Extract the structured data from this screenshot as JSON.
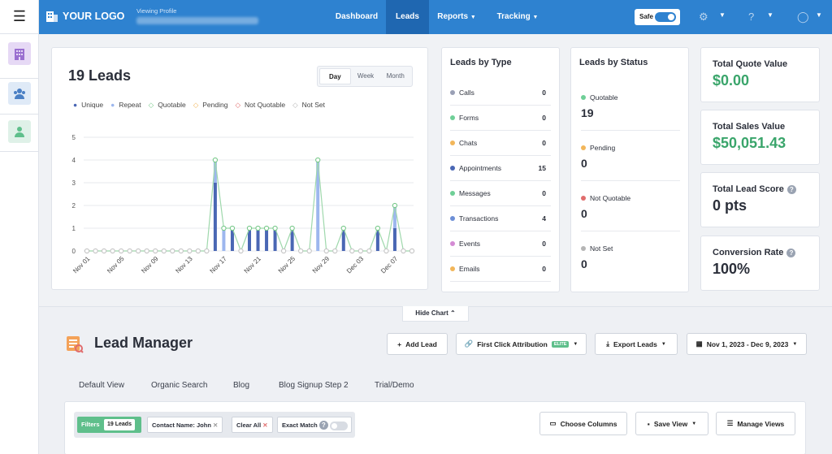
{
  "topbar": {
    "logo_text": "YOUR LOGO",
    "profile_label": "Viewing Profile",
    "profile_name": "Southern Trust Home Services",
    "nav": [
      "Dashboard",
      "Leads",
      "Reports",
      "Tracking"
    ],
    "active_nav": "Leads",
    "safe_label": "Safe",
    "safe_on": true,
    "colors": {
      "bar": "#2e82d0",
      "active": "#1f67b1"
    }
  },
  "sidebar": {
    "icons": [
      "building-icon",
      "group-icon",
      "user-icon"
    ]
  },
  "leads_card": {
    "title": "19 Leads",
    "ranges": [
      "Day",
      "Week",
      "Month"
    ],
    "active_range": "Day",
    "legend": [
      {
        "label": "Unique",
        "color": "#4a67b4"
      },
      {
        "label": "Repeat",
        "color": "#9db7ee"
      },
      {
        "label": "Quotable",
        "color": "#78c98a"
      },
      {
        "label": "Pending",
        "color": "#f2b65a"
      },
      {
        "label": "Not Quotable",
        "color": "#e06c6c"
      },
      {
        "label": "Not Set",
        "color": "#b5b5b5"
      }
    ]
  },
  "chart_data": {
    "type": "bar",
    "ylim": [
      0,
      5
    ],
    "yticks": [
      0,
      1,
      2,
      3,
      4,
      5
    ],
    "xtick_labels": [
      "Nov 01",
      "Nov 05",
      "Nov 09",
      "Nov 13",
      "Nov 17",
      "Nov 21",
      "Nov 25",
      "Nov 29",
      "Dec 03",
      "Dec 07"
    ],
    "categories": [
      "Nov 01",
      "Nov 02",
      "Nov 03",
      "Nov 04",
      "Nov 05",
      "Nov 06",
      "Nov 07",
      "Nov 08",
      "Nov 09",
      "Nov 10",
      "Nov 11",
      "Nov 12",
      "Nov 13",
      "Nov 14",
      "Nov 15",
      "Nov 16",
      "Nov 17",
      "Nov 18",
      "Nov 19",
      "Nov 20",
      "Nov 21",
      "Nov 22",
      "Nov 23",
      "Nov 24",
      "Nov 25",
      "Nov 26",
      "Nov 27",
      "Nov 28",
      "Nov 29",
      "Nov 30",
      "Dec 01",
      "Dec 02",
      "Dec 03",
      "Dec 04",
      "Dec 05",
      "Dec 06",
      "Dec 07",
      "Dec 08",
      "Dec 09"
    ],
    "series": [
      {
        "name": "Unique",
        "values": [
          0,
          0,
          0,
          0,
          0,
          0,
          0,
          0,
          0,
          0,
          0,
          0,
          0,
          0,
          0,
          3,
          0,
          1,
          0,
          1,
          1,
          1,
          1,
          0,
          1,
          0,
          0,
          0,
          0,
          0,
          1,
          0,
          0,
          0,
          1,
          0,
          1,
          0,
          0
        ]
      },
      {
        "name": "Repeat",
        "values": [
          0,
          0,
          0,
          0,
          0,
          0,
          0,
          0,
          0,
          0,
          0,
          0,
          0,
          0,
          0,
          1,
          1,
          0,
          0,
          0,
          0,
          0,
          0,
          0,
          0,
          0,
          0,
          4,
          0,
          0,
          0,
          0,
          0,
          0,
          0,
          0,
          1,
          0,
          0
        ]
      },
      {
        "name": "Quotable",
        "values": [
          0,
          0,
          0,
          0,
          0,
          0,
          0,
          0,
          0,
          0,
          0,
          0,
          0,
          0,
          0,
          4,
          1,
          1,
          0,
          1,
          1,
          1,
          1,
          0,
          1,
          0,
          0,
          4,
          0,
          0,
          1,
          0,
          0,
          0,
          1,
          0,
          2,
          0,
          0
        ]
      }
    ]
  },
  "leads_by_type": {
    "title": "Leads by Type",
    "rows": [
      {
        "label": "Calls",
        "count": "0",
        "color": "#9aa0b5"
      },
      {
        "label": "Forms",
        "count": "0",
        "color": "#6fcf97"
      },
      {
        "label": "Chats",
        "count": "0",
        "color": "#f2b65a"
      },
      {
        "label": "Appointments",
        "count": "15",
        "color": "#4a67b4"
      },
      {
        "label": "Messages",
        "count": "0",
        "color": "#6fcf97"
      },
      {
        "label": "Transactions",
        "count": "4",
        "color": "#6d8fd6"
      },
      {
        "label": "Events",
        "count": "0",
        "color": "#d48bd4"
      },
      {
        "label": "Emails",
        "count": "0",
        "color": "#f2b65a"
      }
    ]
  },
  "leads_by_status": {
    "title": "Leads by Status",
    "rows": [
      {
        "label": "Quotable",
        "count": "19",
        "color": "#6fcf97"
      },
      {
        "label": "Pending",
        "count": "0",
        "color": "#f2b65a"
      },
      {
        "label": "Not Quotable",
        "count": "0",
        "color": "#e06c6c"
      },
      {
        "label": "Not Set",
        "count": "0",
        "color": "#b5b5b5"
      }
    ]
  },
  "metrics": [
    {
      "title": "Total Quote Value",
      "value": "$0.00",
      "color": "#3aa56b",
      "help": false
    },
    {
      "title": "Total Sales Value",
      "value": "$50,051.43",
      "color": "#3aa56b",
      "help": false
    },
    {
      "title": "Total Lead Score",
      "value": "0 pts",
      "color": "#2b2f3a",
      "help": true
    },
    {
      "title": "Conversion Rate",
      "value": "100%",
      "color": "#2b2f3a",
      "help": true
    }
  ],
  "hide_chart": "Hide Chart",
  "lead_manager": {
    "title": "Lead Manager",
    "add_lead": "Add Lead",
    "attribution": "First Click Attribution",
    "elite_badge": "ELITE",
    "export": "Export Leads",
    "date_range": "Nov 1, 2023 - Dec 9, 2023",
    "tabs": [
      "Default View",
      "Organic Search",
      "Blog",
      "Blog Signup Step 2",
      "Trial/Demo"
    ],
    "filters_label": "Filters",
    "filters_count": "19 Leads",
    "contact_filter": "Contact Name: John",
    "clear_all": "Clear All",
    "exact_match": "Exact Match",
    "choose_columns": "Choose Columns",
    "save_view": "Save View",
    "manage_views": "Manage Views"
  }
}
